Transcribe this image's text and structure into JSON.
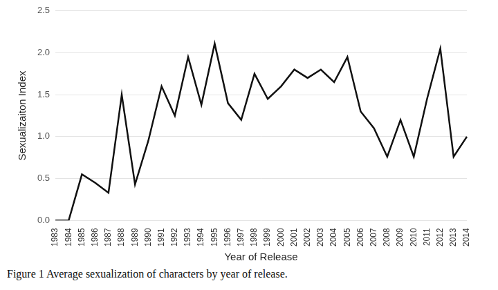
{
  "chart_data": {
    "type": "line",
    "title": "Figure 1 Average sexualization of characters by year of release.",
    "x_label": "Year of Release",
    "y_label": "Sexualizaiton Index",
    "categories": [
      "1983",
      "1984",
      "1985",
      "1986",
      "1987",
      "1988",
      "1989",
      "1990",
      "1991",
      "1992",
      "1993",
      "1994",
      "1995",
      "1996",
      "1997",
      "1998",
      "1999",
      "2000",
      "2001",
      "2002",
      "2003",
      "2004",
      "2005",
      "2006",
      "2007",
      "2008",
      "2009",
      "2010",
      "2011",
      "2012",
      "2013",
      "2014"
    ],
    "values": [
      0,
      0,
      0.55,
      0.45,
      0.33,
      1.5,
      0.43,
      0.95,
      1.6,
      1.25,
      1.95,
      1.38,
      2.11,
      1.4,
      1.2,
      1.75,
      1.45,
      1.6,
      1.8,
      1.7,
      1.8,
      1.65,
      1.95,
      1.3,
      1.1,
      0.76,
      1.2,
      0.76,
      1.45,
      2.05,
      0.76,
      1.0
    ],
    "color": "#111111",
    "ylim": [
      0,
      2.5
    ],
    "yticks": [
      {
        "value": 0,
        "label": "0.0"
      },
      0.5,
      {
        "value": 1,
        "label": "1.0"
      },
      1.5,
      {
        "value": 2,
        "label": "2.0"
      },
      2.5
    ],
    "grid": true
  }
}
